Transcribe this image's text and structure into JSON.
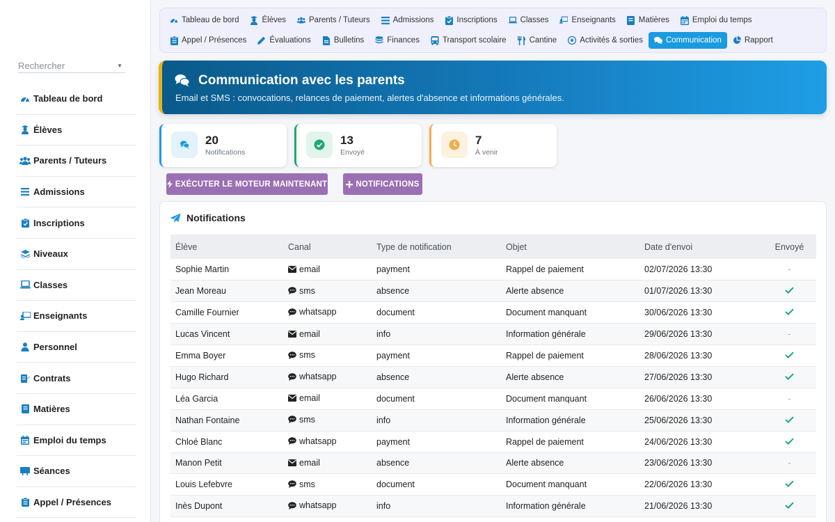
{
  "search": {
    "placeholder": "Rechercher"
  },
  "sidebar": {
    "items": [
      {
        "label": "Tableau de bord",
        "icon": "gauge-icon"
      },
      {
        "label": "Élèves",
        "icon": "student-icon"
      },
      {
        "label": "Parents / Tuteurs",
        "icon": "users-icon"
      },
      {
        "label": "Admissions",
        "icon": "list-icon"
      },
      {
        "label": "Inscriptions",
        "icon": "clipboard-icon"
      },
      {
        "label": "Niveaux",
        "icon": "layers-icon"
      },
      {
        "label": "Classes",
        "icon": "laptop-icon"
      },
      {
        "label": "Enseignants",
        "icon": "teacher-icon"
      },
      {
        "label": "Personnel",
        "icon": "person-icon"
      },
      {
        "label": "Contrats",
        "icon": "contract-icon"
      },
      {
        "label": "Matières",
        "icon": "book-icon"
      },
      {
        "label": "Emploi du temps",
        "icon": "calendar-icon"
      },
      {
        "label": "Séances",
        "icon": "chalkboard-icon"
      },
      {
        "label": "Appel / Présences",
        "icon": "clipboard-check-icon"
      }
    ]
  },
  "topnav": {
    "row1": [
      {
        "label": "Tableau de bord",
        "icon": "gauge-icon"
      },
      {
        "label": "Élèves",
        "icon": "student-icon"
      },
      {
        "label": "Parents / Tuteurs",
        "icon": "users-icon"
      },
      {
        "label": "Admissions",
        "icon": "list-icon"
      },
      {
        "label": "Inscriptions",
        "icon": "clipboard-icon"
      },
      {
        "label": "Classes",
        "icon": "laptop-icon"
      },
      {
        "label": "Enseignants",
        "icon": "teacher-icon"
      },
      {
        "label": "Matières",
        "icon": "book-icon"
      },
      {
        "label": "Emploi du temps",
        "icon": "calendar-icon"
      }
    ],
    "row2": [
      {
        "label": "Appel / Présences",
        "icon": "clipboard-check-icon"
      },
      {
        "label": "Évaluations",
        "icon": "pencil-icon"
      },
      {
        "label": "Bulletins",
        "icon": "file-icon"
      },
      {
        "label": "Finances",
        "icon": "coins-icon"
      },
      {
        "label": "Transport scolaire",
        "icon": "bus-icon"
      },
      {
        "label": "Cantine",
        "icon": "utensils-icon"
      },
      {
        "label": "Activités & sorties",
        "icon": "futbol-icon"
      },
      {
        "label": "Communication",
        "icon": "comments-icon",
        "active": true
      },
      {
        "label": "Rapport",
        "icon": "pie-chart-icon"
      }
    ]
  },
  "banner": {
    "title": "Communication avec les parents",
    "subtitle": "Email et SMS : convocations, relances de paiement, alertes d'absence et informations générales."
  },
  "stats": [
    {
      "value": "20",
      "label": "Notifications",
      "color": "#1a9be0",
      "bg": "#e3f2fb",
      "icon": "comments-icon"
    },
    {
      "value": "13",
      "label": "Envoyé",
      "color": "#1fa971",
      "bg": "#e2f5ec",
      "icon": "check-circle-icon"
    },
    {
      "value": "7",
      "label": "À venir",
      "color": "#f0ad4e",
      "bg": "#fdf1e0",
      "icon": "clock-icon"
    }
  ],
  "buttons": {
    "run_engine": "EXÉCUTER LE MOTEUR MAINTENANT",
    "add_notification": "NOTIFICATIONS"
  },
  "panel": {
    "title": "Notifications",
    "columns": [
      "Élève",
      "Canal",
      "Type de notification",
      "Objet",
      "Date d'envoi",
      "Envoyé"
    ],
    "rows": [
      {
        "student": "Sophie Martin",
        "channel": "email",
        "type": "payment",
        "subject": "Rappel de paiement",
        "date": "02/07/2026 13:30",
        "sent": false
      },
      {
        "student": "Jean Moreau",
        "channel": "sms",
        "type": "absence",
        "subject": "Alerte absence",
        "date": "01/07/2026 13:30",
        "sent": true
      },
      {
        "student": "Camille Fournier",
        "channel": "whatsapp",
        "type": "document",
        "subject": "Document manquant",
        "date": "30/06/2026 13:30",
        "sent": true
      },
      {
        "student": "Lucas Vincent",
        "channel": "email",
        "type": "info",
        "subject": "Information générale",
        "date": "29/06/2026 13:30",
        "sent": false
      },
      {
        "student": "Emma Boyer",
        "channel": "sms",
        "type": "payment",
        "subject": "Rappel de paiement",
        "date": "28/06/2026 13:30",
        "sent": true
      },
      {
        "student": "Hugo Richard",
        "channel": "whatsapp",
        "type": "absence",
        "subject": "Alerte absence",
        "date": "27/06/2026 13:30",
        "sent": true
      },
      {
        "student": "Léa Garcia",
        "channel": "email",
        "type": "document",
        "subject": "Document manquant",
        "date": "26/06/2026 13:30",
        "sent": false
      },
      {
        "student": "Nathan Fontaine",
        "channel": "sms",
        "type": "info",
        "subject": "Information générale",
        "date": "25/06/2026 13:30",
        "sent": true
      },
      {
        "student": "Chloé Blanc",
        "channel": "whatsapp",
        "type": "payment",
        "subject": "Rappel de paiement",
        "date": "24/06/2026 13:30",
        "sent": true
      },
      {
        "student": "Manon Petit",
        "channel": "email",
        "type": "absence",
        "subject": "Alerte absence",
        "date": "23/06/2026 13:30",
        "sent": false
      },
      {
        "student": "Louis Lefebvre",
        "channel": "sms",
        "type": "document",
        "subject": "Document manquant",
        "date": "22/06/2026 13:30",
        "sent": true
      },
      {
        "student": "Inès Dupont",
        "channel": "whatsapp",
        "type": "info",
        "subject": "Information générale",
        "date": "21/06/2026 13:30",
        "sent": true
      }
    ],
    "unsent_mark": "-"
  }
}
